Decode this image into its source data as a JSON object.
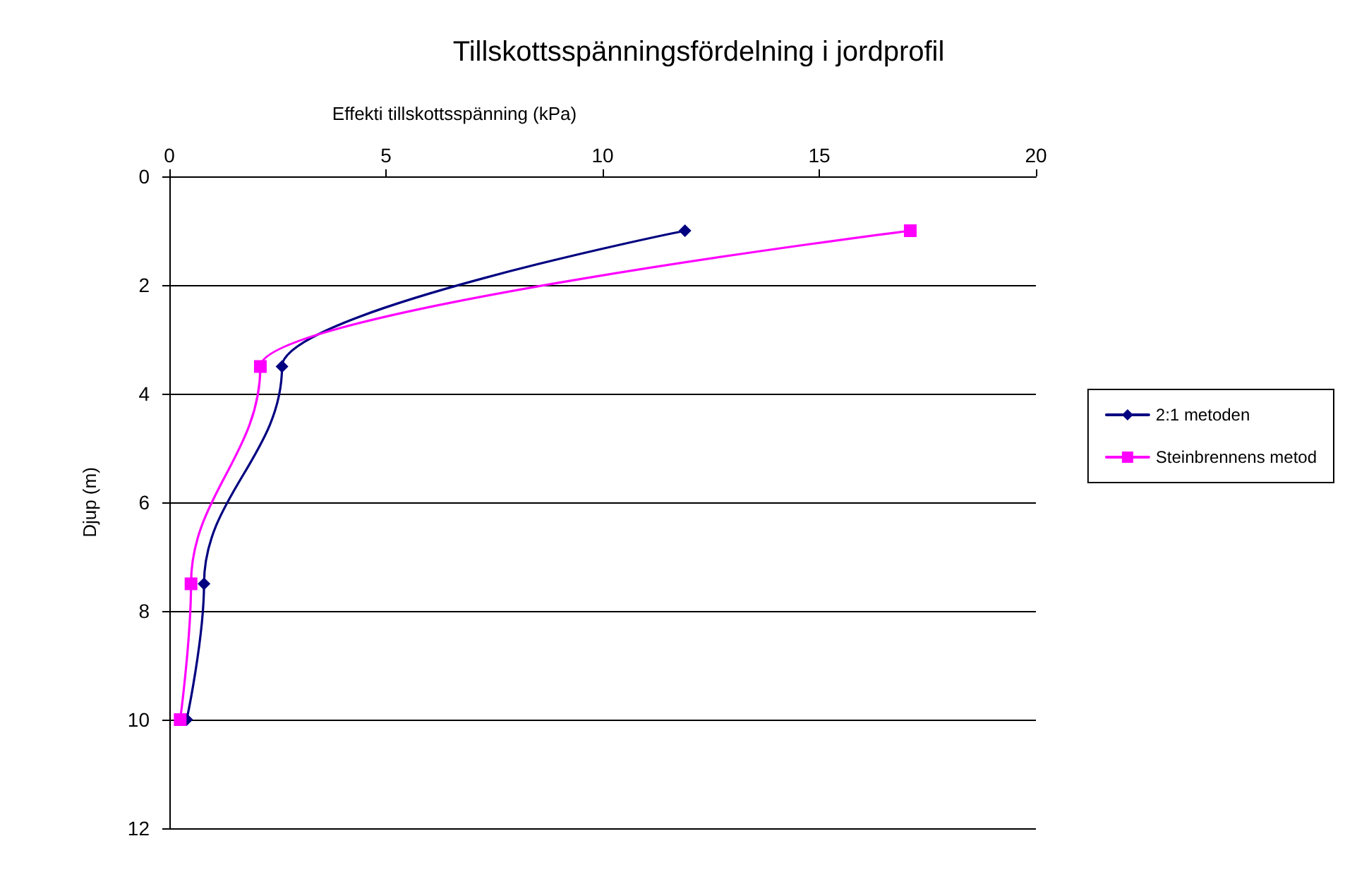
{
  "chart_data": {
    "type": "line",
    "title": "Tillskottsspänningsfördelning i jordprofil",
    "xlabel": "Effekti tillskottsspänning (kPa)",
    "ylabel": "Djup (m)",
    "xlim": [
      0,
      20
    ],
    "xticks": [
      0,
      5,
      10,
      15,
      20
    ],
    "ylim": [
      12,
      0
    ],
    "yticks": [
      0,
      2,
      4,
      6,
      8,
      10,
      12
    ],
    "grid": "y",
    "legend": "right",
    "series": [
      {
        "name": "2:1 metoden",
        "color": "#000080",
        "marker": "diamond",
        "x": [
          11.9,
          2.6,
          0.8,
          0.4
        ],
        "values": [
          1,
          3.5,
          7.5,
          10
        ]
      },
      {
        "name": "Steinbrennens metod",
        "color": "#ff00ff",
        "marker": "square",
        "x": [
          17.1,
          2.1,
          0.5,
          0.25
        ],
        "values": [
          1,
          3.5,
          7.5,
          10
        ]
      }
    ]
  }
}
